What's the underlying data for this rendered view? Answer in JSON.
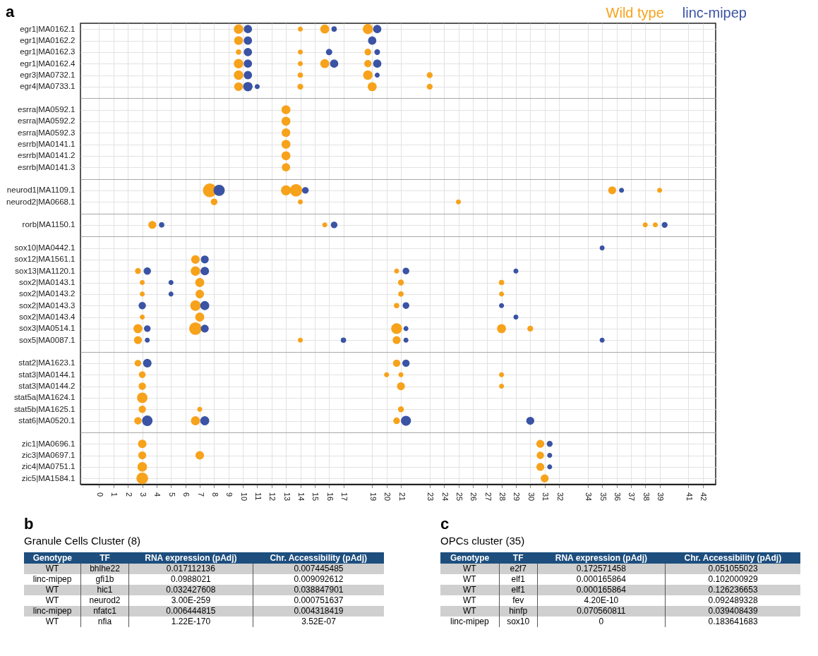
{
  "chart_data": [
    {
      "type": "bubble",
      "orientation": "horizontal",
      "title": "a",
      "grid": true,
      "xlim": [
        -1.3,
        42.9
      ],
      "xticks": [
        0,
        1,
        2,
        3,
        4,
        5,
        6,
        7,
        8,
        9,
        10,
        11,
        12,
        13,
        14,
        15,
        16,
        17,
        19,
        20,
        21,
        23,
        24,
        25,
        26,
        27,
        28,
        29,
        30,
        31,
        32,
        34,
        35,
        36,
        37,
        38,
        39,
        41,
        42
      ],
      "categories": [
        "egr1|MA0162.1",
        "egr1|MA0162.2",
        "egr1|MA0162.3",
        "egr1|MA0162.4",
        "egr3|MA0732.1",
        "egr4|MA0733.1",
        null,
        "esrra|MA0592.1",
        "esrra|MA0592.2",
        "esrra|MA0592.3",
        "esrrb|MA0141.1",
        "esrrb|MA0141.2",
        "esrrb|MA0141.3",
        null,
        "neurod1|MA1109.1",
        "neurod2|MA0668.1",
        null,
        "rorb|MA1150.1",
        null,
        "sox10|MA0442.1",
        "sox12|MA1561.1",
        "sox13|MA1120.1",
        "sox2|MA0143.1",
        "sox2|MA0143.2",
        "sox2|MA0143.3",
        "sox2|MA0143.4",
        "sox3|MA0514.1",
        "sox5|MA0087.1",
        null,
        "stat2|MA1623.1",
        "stat3|MA0144.1",
        "stat3|MA0144.2",
        "stat5a|MA1624.1",
        "stat5b|MA1625.1",
        "stat6|MA0520.1",
        null,
        "zic1|MA0696.1",
        "zic3|MA0697.1",
        "zic4|MA0751.1",
        "zic5|MA1584.1"
      ],
      "series": [
        {
          "name": "Wild type",
          "color": "#f7a21b",
          "x": [
            "egr1|MA0162.1",
            "egr1|MA0162.1",
            "egr1|MA0162.1",
            "egr1|MA0162.1",
            "egr1|MA0162.2",
            "egr1|MA0162.3",
            "egr1|MA0162.3",
            "egr1|MA0162.3",
            "egr1|MA0162.4",
            "egr1|MA0162.4",
            "egr1|MA0162.4",
            "egr1|MA0162.4",
            "egr3|MA0732.1",
            "egr3|MA0732.1",
            "egr3|MA0732.1",
            "egr3|MA0732.1",
            "egr4|MA0733.1",
            "egr4|MA0733.1",
            "egr4|MA0733.1",
            "egr4|MA0733.1",
            "esrra|MA0592.1",
            "esrra|MA0592.2",
            "esrra|MA0592.3",
            "esrrb|MA0141.1",
            "esrrb|MA0141.2",
            "esrrb|MA0141.3",
            "neurod1|MA1109.1",
            "neurod1|MA1109.1",
            "neurod1|MA1109.1",
            "neurod1|MA1109.1",
            "neurod1|MA1109.1",
            "neurod2|MA0668.1",
            "neurod2|MA0668.1",
            "neurod2|MA0668.1",
            "rorb|MA1150.1",
            "rorb|MA1150.1",
            "rorb|MA1150.1",
            "rorb|MA1150.1",
            "sox12|MA1561.1",
            "sox13|MA1120.1",
            "sox13|MA1120.1",
            "sox13|MA1120.1",
            "sox2|MA0143.1",
            "sox2|MA0143.1",
            "sox2|MA0143.1",
            "sox2|MA0143.1",
            "sox2|MA0143.2",
            "sox2|MA0143.2",
            "sox2|MA0143.2",
            "sox2|MA0143.2",
            "sox2|MA0143.3",
            "sox2|MA0143.3",
            "sox2|MA0143.4",
            "sox2|MA0143.4",
            "sox3|MA0514.1",
            "sox3|MA0514.1",
            "sox3|MA0514.1",
            "sox3|MA0514.1",
            "sox3|MA0514.1",
            "sox5|MA0087.1",
            "sox5|MA0087.1",
            "sox5|MA0087.1",
            "stat2|MA1623.1",
            "stat2|MA1623.1",
            "stat3|MA0144.1",
            "stat3|MA0144.1",
            "stat3|MA0144.1",
            "stat3|MA0144.1",
            "stat3|MA0144.2",
            "stat3|MA0144.2",
            "stat3|MA0144.2",
            "stat5a|MA1624.1",
            "stat5b|MA1625.1",
            "stat5b|MA1625.1",
            "stat5b|MA1625.1",
            "stat6|MA0520.1",
            "stat6|MA0520.1",
            "stat6|MA0520.1",
            "zic1|MA0696.1",
            "zic1|MA0696.1",
            "zic3|MA0697.1",
            "zic3|MA0697.1",
            "zic3|MA0697.1",
            "zic4|MA0751.1",
            "zic4|MA0751.1",
            "zic5|MA1584.1",
            "zic5|MA1584.1"
          ],
          "values": [
            9.7,
            14,
            15.7,
            18.7,
            9.7,
            9.7,
            14,
            18.7,
            9.7,
            14,
            15.7,
            18.7,
            9.7,
            14,
            18.7,
            23,
            9.7,
            14,
            19,
            23,
            13,
            13,
            13,
            13,
            13,
            13,
            7.7,
            13,
            13.7,
            35.7,
            39,
            8,
            14,
            25,
            3.7,
            15.7,
            38,
            38.7,
            6.7,
            2.7,
            6.7,
            20.7,
            3,
            7,
            21,
            28,
            3,
            7,
            21,
            28,
            6.7,
            20.7,
            3,
            7,
            2.7,
            6.7,
            20.7,
            28,
            30,
            2.7,
            14,
            20.7,
            2.7,
            20.7,
            3,
            20,
            21,
            28,
            3,
            21,
            28,
            3,
            3,
            7,
            21,
            2.7,
            6.7,
            20.7,
            3,
            30.7,
            3,
            7,
            30.7,
            3,
            30.7,
            3,
            31
          ],
          "sizes": [
            0.44,
            0.1,
            0.39,
            0.52,
            0.37,
            0.12,
            0.1,
            0.2,
            0.44,
            0.1,
            0.39,
            0.25,
            0.44,
            0.12,
            0.44,
            0.15,
            0.37,
            0.15,
            0.4,
            0.15,
            0.39,
            0.39,
            0.36,
            0.39,
            0.39,
            0.33,
            1,
            0.5,
            0.8,
            0.3,
            0.1,
            0.2,
            0.1,
            0.1,
            0.3,
            0.1,
            0.1,
            0.1,
            0.35,
            0.15,
            0.44,
            0.1,
            0.1,
            0.4,
            0.15,
            0.12,
            0.1,
            0.35,
            0.12,
            0.1,
            0.55,
            0.12,
            0.1,
            0.4,
            0.4,
            0.8,
            0.6,
            0.4,
            0.15,
            0.3,
            0.1,
            0.3,
            0.2,
            0.25,
            0.2,
            0.1,
            0.1,
            0.1,
            0.25,
            0.3,
            0.1,
            0.55,
            0.25,
            0.1,
            0.15,
            0.25,
            0.4,
            0.2,
            0.35,
            0.3,
            0.3,
            0.35,
            0.25,
            0.45,
            0.3,
            0.7,
            0.3
          ]
        },
        {
          "name": "linc-mipep",
          "color": "#3a53a4",
          "x": [
            "egr1|MA0162.1",
            "egr1|MA0162.1",
            "egr1|MA0162.1",
            "egr1|MA0162.2",
            "egr1|MA0162.2",
            "egr1|MA0162.3",
            "egr1|MA0162.3",
            "egr1|MA0162.3",
            "egr1|MA0162.4",
            "egr1|MA0162.4",
            "egr1|MA0162.4",
            "egr3|MA0732.1",
            "egr3|MA0732.1",
            "egr4|MA0733.1",
            "egr4|MA0733.1",
            "neurod1|MA1109.1",
            "neurod1|MA1109.1",
            "neurod1|MA1109.1",
            "rorb|MA1150.1",
            "rorb|MA1150.1",
            "rorb|MA1150.1",
            "sox10|MA0442.1",
            "sox12|MA1561.1",
            "sox13|MA1120.1",
            "sox13|MA1120.1",
            "sox13|MA1120.1",
            "sox13|MA1120.1",
            "sox2|MA0143.1",
            "sox2|MA0143.2",
            "sox2|MA0143.3",
            "sox2|MA0143.3",
            "sox2|MA0143.3",
            "sox2|MA0143.3",
            "sox2|MA0143.4",
            "sox3|MA0514.1",
            "sox3|MA0514.1",
            "sox3|MA0514.1",
            "sox5|MA0087.1",
            "sox5|MA0087.1",
            "sox5|MA0087.1",
            "sox5|MA0087.1",
            "stat2|MA1623.1",
            "stat2|MA1623.1",
            "stat6|MA0520.1",
            "stat6|MA0520.1",
            "stat6|MA0520.1",
            "stat6|MA0520.1",
            "zic1|MA0696.1",
            "zic3|MA0697.1",
            "zic4|MA0751.1"
          ],
          "values": [
            10.35,
            16.35,
            19.35,
            10.35,
            19,
            10.35,
            16,
            19.35,
            10.35,
            16.35,
            19.35,
            10.35,
            19.35,
            10.35,
            11,
            8.35,
            14.35,
            36.35,
            4.35,
            16.35,
            39.35,
            35,
            7.35,
            3.35,
            7.35,
            21.35,
            29,
            5,
            5,
            3,
            7.35,
            21.35,
            28,
            29,
            3.35,
            7.35,
            21.35,
            3.35,
            17,
            21.35,
            35,
            3.35,
            21.35,
            3.35,
            7.35,
            21.35,
            30,
            31.35,
            31.35,
            31.35
          ],
          "sizes": [
            0.33,
            0.12,
            0.33,
            0.33,
            0.33,
            0.33,
            0.18,
            0.14,
            0.33,
            0.33,
            0.33,
            0.33,
            0.1,
            0.44,
            0.1,
            0.64,
            0.2,
            0.1,
            0.12,
            0.2,
            0.15,
            0.1,
            0.3,
            0.25,
            0.35,
            0.2,
            0.1,
            0.1,
            0.1,
            0.25,
            0.4,
            0.2,
            0.1,
            0.1,
            0.2,
            0.3,
            0.1,
            0.1,
            0.12,
            0.1,
            0.1,
            0.35,
            0.25,
            0.55,
            0.4,
            0.5,
            0.3,
            0.15,
            0.1,
            0.1
          ]
        }
      ]
    },
    {
      "type": "other",
      "title": "b",
      "subtitle": "Granule Cells Cluster (8)",
      "categories": [
        "Genotype",
        "TF",
        "RNA expression (pAdj)",
        "Chr. Accessibility (pAdj)"
      ],
      "annotations": [
        "WT",
        "bhlhe22",
        "0.017112136",
        "0.007445485",
        "linc-mipep",
        "gfi1b",
        "0.0988021",
        "0.009092612",
        "WT",
        "hic1",
        "0.032427608",
        "0.038847901",
        "WT",
        "neurod2",
        "3.00E-259",
        "0.000751637",
        "linc-mipep",
        "nfatc1",
        "0.006444815",
        "0.004318419",
        "WT",
        "nfia",
        "1.22E-170",
        "3.52E-07"
      ]
    },
    {
      "type": "other",
      "title": "c",
      "subtitle": "OPCs cluster (35)",
      "categories": [
        "Genotype",
        "TF",
        "RNA expression (pAdj)",
        "Chr. Accessibility (pAdj)"
      ],
      "annotations": [
        "WT",
        "e2f7",
        "0.172571458",
        "0.051055023",
        "WT",
        "elf1",
        "0.000165864",
        "0.102000929",
        "WT",
        "elf1",
        "0.000165864",
        "0.126236653",
        "WT",
        "fev",
        "4.20E-10",
        "0.092489328",
        "WT",
        "hinfp",
        "0.070560811",
        "0.039408439",
        "linc-mipep",
        "sox10",
        "0",
        "0.183641683"
      ]
    }
  ]
}
